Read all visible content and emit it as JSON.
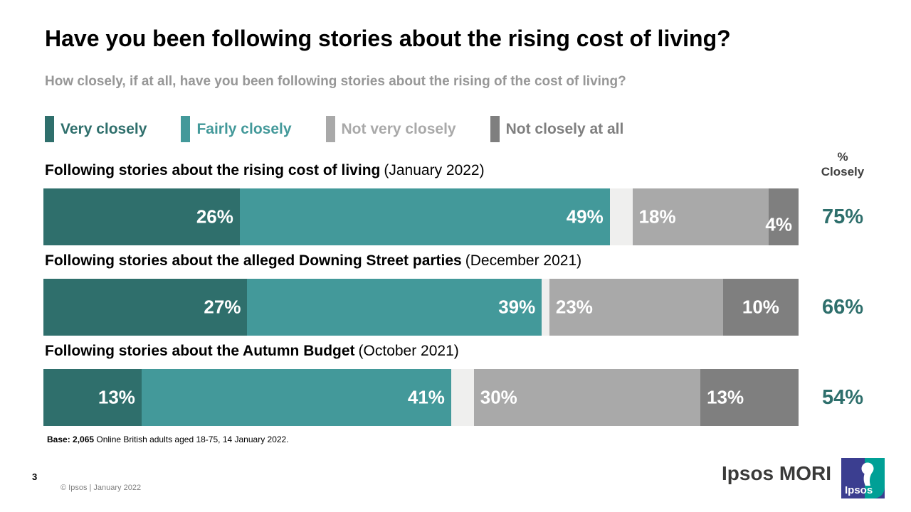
{
  "slide": {
    "title": "Have you been following stories about the rising cost of living?",
    "subtitle": "How closely, if at all, have you been following stories about the rising of the cost of living?"
  },
  "legend": {
    "items": [
      {
        "label": "Very closely",
        "color": "#2F6F6C"
      },
      {
        "label": "Fairly closely",
        "color": "#43999A"
      },
      {
        "label": "Not very closely",
        "color": "#A9A9A9"
      },
      {
        "label": "Not closely at all",
        "color": "#7F7F7F"
      }
    ]
  },
  "right_column": {
    "header_line1": "%",
    "header_line2": "Closely"
  },
  "chart_data": {
    "type": "bar",
    "variant": "horizontal-stacked-100",
    "unit": "%",
    "legend_position": "top",
    "series_names": [
      "Very closely",
      "Fairly closely",
      "Not very closely",
      "Not closely at all"
    ],
    "colors": {
      "very_closely": "#2F6F6C",
      "fairly_closely": "#43999A",
      "not_very_closely": "#A9A9A9",
      "not_closely_at_all": "#7F7F7F",
      "unshown_gap": "#EFEFEE",
      "total_text": "#2E6F6C"
    },
    "rows": [
      {
        "title_bold": "Following stories about the rising cost of living",
        "title_note": "(January 2022)",
        "closely_total": "75%",
        "segments": [
          {
            "name": "very-closely",
            "value": 26,
            "label": "26%",
            "color": "#2F6F6C",
            "label_align": "right"
          },
          {
            "name": "fairly-closely",
            "value": 49,
            "label": "49%",
            "color": "#43999A",
            "label_align": "right"
          },
          {
            "name": "unshown-gap",
            "value": 3,
            "label": "",
            "color": "#EFEFEE",
            "label_align": "none"
          },
          {
            "name": "not-very-closely",
            "value": 18,
            "label": "18%",
            "color": "#A9A9A9",
            "label_align": "left"
          },
          {
            "name": "not-closely-at-all",
            "value": 4,
            "label": "4%",
            "color": "#7F7F7F",
            "label_align": "right",
            "label_offset_down": true
          }
        ]
      },
      {
        "title_bold": "Following stories about the alleged Downing Street parties",
        "title_note": "(December 2021)",
        "closely_total": "66%",
        "segments": [
          {
            "name": "very-closely",
            "value": 27,
            "label": "27%",
            "color": "#2F6F6C",
            "label_align": "right"
          },
          {
            "name": "fairly-closely",
            "value": 39,
            "label": "39%",
            "color": "#43999A",
            "label_align": "right"
          },
          {
            "name": "unshown-gap",
            "value": 1,
            "label": "",
            "color": "#EFEFEE",
            "label_align": "none"
          },
          {
            "name": "not-very-closely",
            "value": 23,
            "label": "23%",
            "color": "#A9A9A9",
            "label_align": "left"
          },
          {
            "name": "not-closely-at-all",
            "value": 10,
            "label": "10%",
            "color": "#7F7F7F",
            "label_align": "center"
          }
        ]
      },
      {
        "title_bold": "Following stories about the Autumn Budget",
        "title_note": "(October 2021)",
        "closely_total": "54%",
        "segments": [
          {
            "name": "very-closely",
            "value": 13,
            "label": "13%",
            "color": "#2F6F6C",
            "label_align": "right"
          },
          {
            "name": "fairly-closely",
            "value": 41,
            "label": "41%",
            "color": "#43999A",
            "label_align": "right"
          },
          {
            "name": "unshown-gap",
            "value": 3,
            "label": "",
            "color": "#EFEFEE",
            "label_align": "none"
          },
          {
            "name": "not-very-closely",
            "value": 30,
            "label": "30%",
            "color": "#A9A9A9",
            "label_align": "left"
          },
          {
            "name": "not-closely-at-all",
            "value": 13,
            "label": "13%",
            "color": "#7F7F7F",
            "label_align": "left"
          }
        ]
      }
    ]
  },
  "base_note": {
    "bold": "Base: 2,065",
    "regular": " Online British adults aged 18-75, 14 January 2022."
  },
  "footer": {
    "page_number": "3",
    "copyright": "© Ipsos | January 2022",
    "brand": "Ipsos MORI",
    "logo_label": "Ipsos",
    "logo_blue": "#3B3E90",
    "logo_teal": "#00A096"
  }
}
